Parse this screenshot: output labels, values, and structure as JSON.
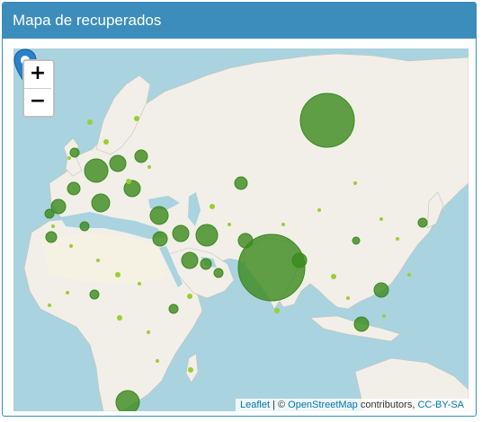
{
  "panel": {
    "title": "Mapa de recuperados"
  },
  "zoom": {
    "in_label": "+",
    "out_label": "−"
  },
  "attribution": {
    "leaflet": "Leaflet",
    "separator": " | © ",
    "osm": "OpenStreetMap",
    "contributors": " contributors, ",
    "license": "CC-BY-SA"
  },
  "colors": {
    "water": "#a9d3df",
    "land": "#f2efe9",
    "marker_fill": "#3a8a1c",
    "marker_small": "#9acd32",
    "pin": "#2a81cb"
  },
  "map": {
    "marker": "map-pin-icon",
    "circle_markers": "recovered-cases"
  }
}
